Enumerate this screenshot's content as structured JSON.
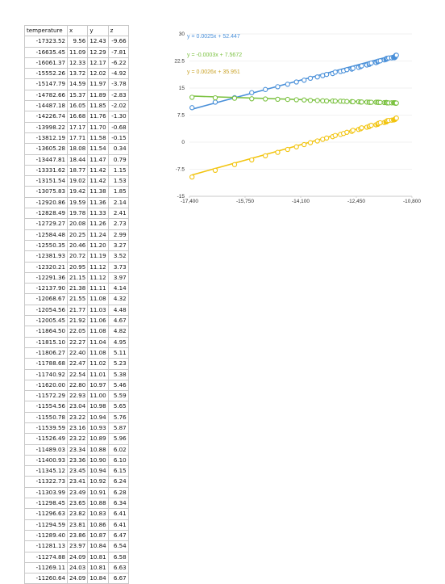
{
  "table": {
    "headers": [
      "temperature",
      "x",
      "y",
      "z"
    ],
    "rows": [
      [
        "-17323.52",
        "9.56",
        "12.43",
        "-9.66"
      ],
      [
        "-16635.45",
        "11.09",
        "12.29",
        "-7.81"
      ],
      [
        "-16061.37",
        "12.33",
        "12.17",
        "-6.22"
      ],
      [
        "-15552.26",
        "13.72",
        "12.02",
        "-4.92"
      ],
      [
        "-15147.79",
        "14.59",
        "11.97",
        "-3.78"
      ],
      [
        "-14782.66",
        "15.37",
        "11.89",
        "-2.83"
      ],
      [
        "-14487.18",
        "16.05",
        "11.85",
        "-2.02"
      ],
      [
        "-14226.74",
        "16.68",
        "11.76",
        "-1.30"
      ],
      [
        "-13998.22",
        "17.17",
        "11.70",
        "-0.68"
      ],
      [
        "-13812.19",
        "17.71",
        "11.58",
        "-0.15"
      ],
      [
        "-13605.28",
        "18.08",
        "11.54",
        "0.34"
      ],
      [
        "-13447.81",
        "18.44",
        "11.47",
        "0.79"
      ],
      [
        "-13331.62",
        "18.77",
        "11.42",
        "1.15"
      ],
      [
        "-13151.54",
        "19.02",
        "11.42",
        "1.53"
      ],
      [
        "-13075.83",
        "19.42",
        "11.38",
        "1.85"
      ],
      [
        "-12920.86",
        "19.59",
        "11.36",
        "2.14"
      ],
      [
        "-12828.49",
        "19.78",
        "11.33",
        "2.41"
      ],
      [
        "-12729.27",
        "20.08",
        "11.26",
        "2.73"
      ],
      [
        "-12584.48",
        "20.25",
        "11.24",
        "2.99"
      ],
      [
        "-12550.35",
        "20.46",
        "11.20",
        "3.27"
      ],
      [
        "-12381.93",
        "20.72",
        "11.19",
        "3.52"
      ],
      [
        "-12320.21",
        "20.95",
        "11.12",
        "3.73"
      ],
      [
        "-12291.36",
        "21.15",
        "11.12",
        "3.97"
      ],
      [
        "-12137.90",
        "21.38",
        "11.11",
        "4.14"
      ],
      [
        "-12068.67",
        "21.55",
        "11.08",
        "4.32"
      ],
      [
        "-12054.56",
        "21.77",
        "11.03",
        "4.48"
      ],
      [
        "-12005.45",
        "21.92",
        "11.06",
        "4.67"
      ],
      [
        "-11864.50",
        "22.05",
        "11.08",
        "4.82"
      ],
      [
        "-11815.10",
        "22.27",
        "11.04",
        "4.95"
      ],
      [
        "-11806.27",
        "22.40",
        "11.08",
        "5.11"
      ],
      [
        "-11788.68",
        "22.47",
        "11.02",
        "5.23"
      ],
      [
        "-11740.92",
        "22.54",
        "11.01",
        "5.38"
      ],
      [
        "-11620.00",
        "22.80",
        "10.97",
        "5.46"
      ],
      [
        "-11572.29",
        "22.93",
        "11.00",
        "5.59"
      ],
      [
        "-11554.56",
        "23.04",
        "10.98",
        "5.65"
      ],
      [
        "-11550.78",
        "23.22",
        "10.94",
        "5.76"
      ],
      [
        "-11539.59",
        "23.16",
        "10.93",
        "5.87"
      ],
      [
        "-11526.49",
        "23.22",
        "10.89",
        "5.96"
      ],
      [
        "-11489.03",
        "23.34",
        "10.88",
        "6.02"
      ],
      [
        "-11400.93",
        "23.36",
        "10.90",
        "6.10"
      ],
      [
        "-11345.12",
        "23.45",
        "10.94",
        "6.15"
      ],
      [
        "-11322.73",
        "23.41",
        "10.92",
        "6.24"
      ],
      [
        "-11303.99",
        "23.49",
        "10.91",
        "6.28"
      ],
      [
        "-11298.45",
        "23.65",
        "10.88",
        "6.34"
      ],
      [
        "-11296.63",
        "23.82",
        "10.83",
        "6.41"
      ],
      [
        "-11294.59",
        "23.81",
        "10.86",
        "6.41"
      ],
      [
        "-11289.40",
        "23.86",
        "10.87",
        "6.47"
      ],
      [
        "-11281.13",
        "23.97",
        "10.84",
        "6.54"
      ],
      [
        "-11274.88",
        "24.09",
        "10.81",
        "6.58"
      ],
      [
        "-11269.11",
        "24.03",
        "10.81",
        "6.63"
      ],
      [
        "-11260.64",
        "24.09",
        "10.84",
        "6.67"
      ]
    ]
  },
  "chart_data": {
    "type": "scatter",
    "x_ticks": [
      "-17,400",
      "-15,750",
      "-14,100",
      "-12,450",
      "-10,800"
    ],
    "y_ticks": [
      "30",
      "22.5",
      "15",
      "7.5",
      "0",
      "-7.5",
      "-15"
    ],
    "xlim": [
      -17400,
      -10800
    ],
    "ylim": [
      -15,
      30
    ],
    "grid": true,
    "series": [
      {
        "column": "x",
        "color": "#4a90d9",
        "trendline": "y = 0.0025x + 52.447",
        "slope": 0.0025,
        "intercept": 52.447
      },
      {
        "column": "y",
        "color": "#7cc242",
        "trendline": "y = -0.0003x + 7.5672",
        "slope": -0.0003,
        "intercept": 7.5672
      },
      {
        "column": "z",
        "color": "#f2c40f",
        "trendline": "y = 0.0026x + 35.951",
        "slope": 0.0026,
        "intercept": 35.951
      }
    ],
    "equation_colors": [
      "#4a90d9",
      "#7cc242",
      "#c9a227"
    ]
  }
}
